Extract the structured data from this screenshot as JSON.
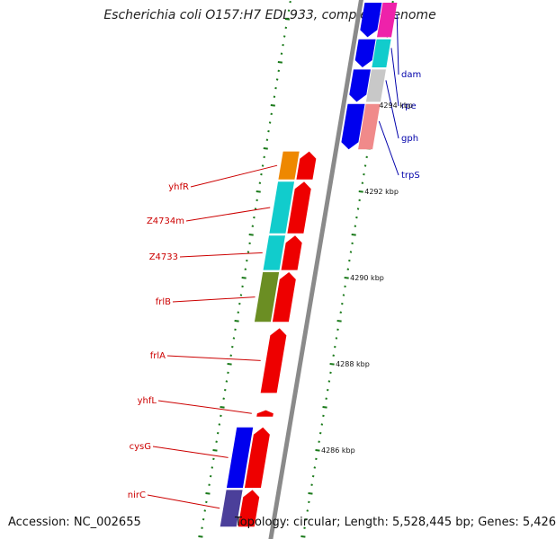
{
  "title": "Escherichia coli O157:H7 EDL933, complete genome",
  "footer": {
    "accession": "Accession: NC_002655",
    "summary": "Topology: circular; Length: 5,528,445 bp; Genes: 5,426"
  },
  "colors": {
    "backbone": "#8a8a8a",
    "ticks": "#1a7a1a",
    "forward_strand": "#ee0000",
    "reverse_strand": "#0000ee",
    "label_left": "#cc0000",
    "label_right": "#0000aa"
  },
  "scale_labels": [
    {
      "kbp": 4294,
      "text": "4294 kbp"
    },
    {
      "kbp": 4292,
      "text": "4292 kbp"
    },
    {
      "kbp": 4290,
      "text": "4290 kbp"
    },
    {
      "kbp": 4288,
      "text": "4288 kbp"
    },
    {
      "kbp": 4286,
      "text": "4286 kbp"
    }
  ],
  "genes_right": [
    {
      "name": "dam",
      "start": 4295.55,
      "end": 4296.4,
      "color": "#ee22aa",
      "strand_color": "#0000ee"
    },
    {
      "name": "rpe",
      "start": 4294.85,
      "end": 4295.55,
      "color": "#11cccc",
      "strand_color": "#0000ee"
    },
    {
      "name": "gph",
      "start": 4294.05,
      "end": 4294.85,
      "color": "#c8c8c8",
      "strand_color": "#0000ee"
    },
    {
      "name": "trpS",
      "start": 4292.95,
      "end": 4294.05,
      "color": "#f08a8a",
      "strand_color": "#0000ee"
    }
  ],
  "genes_left": [
    {
      "name": "yhfR",
      "start": 4292.25,
      "end": 4292.95,
      "color": "#ee8800",
      "strand_color": "#ee0000"
    },
    {
      "name": "Z4734m",
      "start": 4291.0,
      "end": 4292.25,
      "color": "#11cccc",
      "strand_color": "#ee0000"
    },
    {
      "name": "Z4733",
      "start": 4290.15,
      "end": 4291.0,
      "color": "#11cccc",
      "strand_color": "#ee0000"
    },
    {
      "name": "frlB",
      "start": 4288.95,
      "end": 4290.15,
      "color": "#6b8e23",
      "strand_color": "#ee0000"
    },
    {
      "name": "frlA",
      "start": 4287.3,
      "end": 4288.85,
      "color": null,
      "strand_color": "#ee0000"
    },
    {
      "name": "yhfL",
      "start": 4286.75,
      "end": 4286.95,
      "color": null,
      "strand_color": "#ee0000"
    },
    {
      "name": "cysG",
      "start": 4285.1,
      "end": 4286.55,
      "color": "#0000ee",
      "strand_color": "#ee0000"
    },
    {
      "name": "nirC",
      "start": 4284.2,
      "end": 4285.1,
      "color": "#4b3f9a",
      "strand_color": "#ee0000"
    }
  ]
}
